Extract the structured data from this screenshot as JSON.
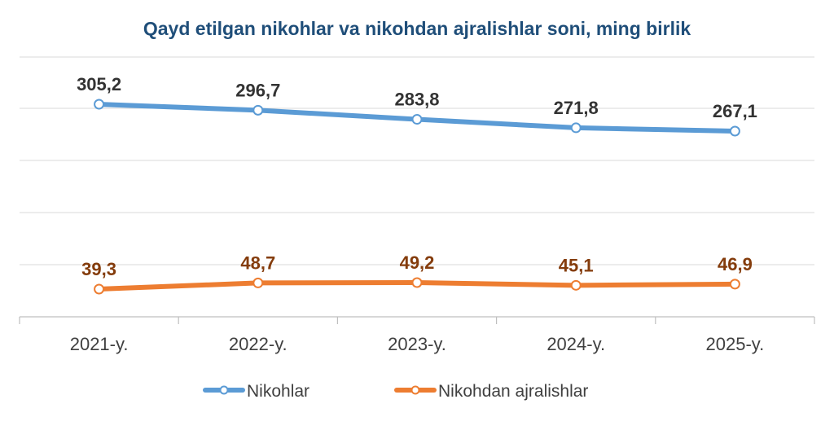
{
  "chart_data": {
    "type": "line",
    "title": "Qayd etilgan nikohlar va nikohdan ajralishlar soni, ming birlik",
    "categories": [
      "2021-y.",
      "2022-y.",
      "2023-y.",
      "2024-y.",
      "2025-y."
    ],
    "series": [
      {
        "name": "Nikohlar",
        "values": [
          305.2,
          296.7,
          283.8,
          271.8,
          267.1
        ],
        "labels": [
          "305,2",
          "296,7",
          "283,8",
          "271,8",
          "267,1"
        ],
        "color": "#5b9bd5",
        "label_color": "#333333"
      },
      {
        "name": "Nikohdan ajralishlar",
        "values": [
          39.3,
          48.7,
          49.2,
          45.1,
          46.9
        ],
        "labels": [
          "39,3",
          "48,7",
          "49,2",
          "45,1",
          "46,9"
        ],
        "color": "#ed7d31",
        "label_color": "#843c0c"
      }
    ],
    "grid": true,
    "legend_position": "bottom",
    "data_labels": true
  }
}
